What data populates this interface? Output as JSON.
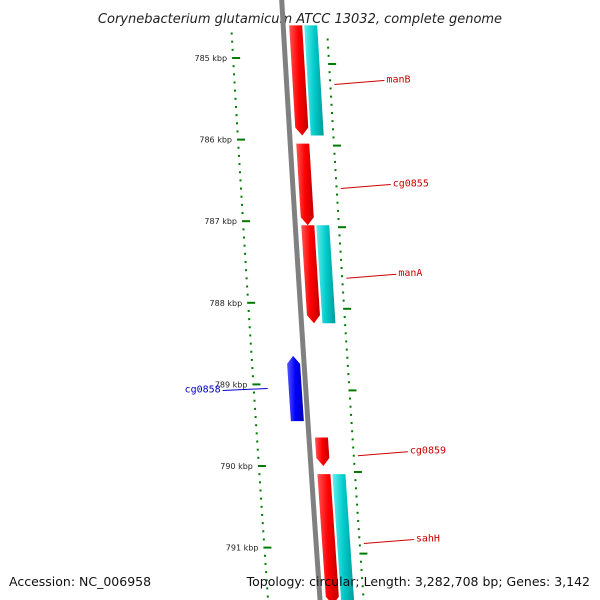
{
  "title": "Corynebacterium glutamicum ATCC 13032, complete genome",
  "accession": "Accession: NC_006958",
  "topology": "Topology: circular; Length: 3,282,708 bp; Genes: 3,142",
  "colors": {
    "forward_gene": "#ff0000",
    "reverse_gene": "#0000ff",
    "forward_cds": "#00cccc",
    "reverse_cds": "#ccccff",
    "backbone": "#808080",
    "ticks": "#007a00",
    "forward_label": "#cc0000",
    "reverse_label": "#0000cc"
  },
  "ticks": [
    {
      "label": "785 kbp",
      "kbp": 785
    },
    {
      "label": "786 kbp",
      "kbp": 786
    },
    {
      "label": "787 kbp",
      "kbp": 787
    },
    {
      "label": "788 kbp",
      "kbp": 788
    },
    {
      "label": "789 kbp",
      "kbp": 789
    },
    {
      "label": "790 kbp",
      "kbp": 790
    },
    {
      "label": "791 kbp",
      "kbp": 791
    }
  ],
  "genes": [
    {
      "name": "manB",
      "strand": "forward",
      "start_kbp": 784.6,
      "end_kbp": 785.95,
      "cds": true
    },
    {
      "name": "cg0855",
      "strand": "forward",
      "start_kbp": 786.05,
      "end_kbp": 787.05,
      "cds": false
    },
    {
      "name": "manA",
      "strand": "forward",
      "start_kbp": 787.05,
      "end_kbp": 788.25,
      "cds": true
    },
    {
      "name": "cg0858",
      "strand": "reverse",
      "start_kbp": 788.65,
      "end_kbp": 789.45,
      "cds": false
    },
    {
      "name": "cg0859",
      "strand": "forward",
      "start_kbp": 789.65,
      "end_kbp": 790.0,
      "cds": false
    },
    {
      "name": "sahH",
      "strand": "forward",
      "start_kbp": 790.1,
      "end_kbp": 791.7,
      "cds": true
    }
  ]
}
